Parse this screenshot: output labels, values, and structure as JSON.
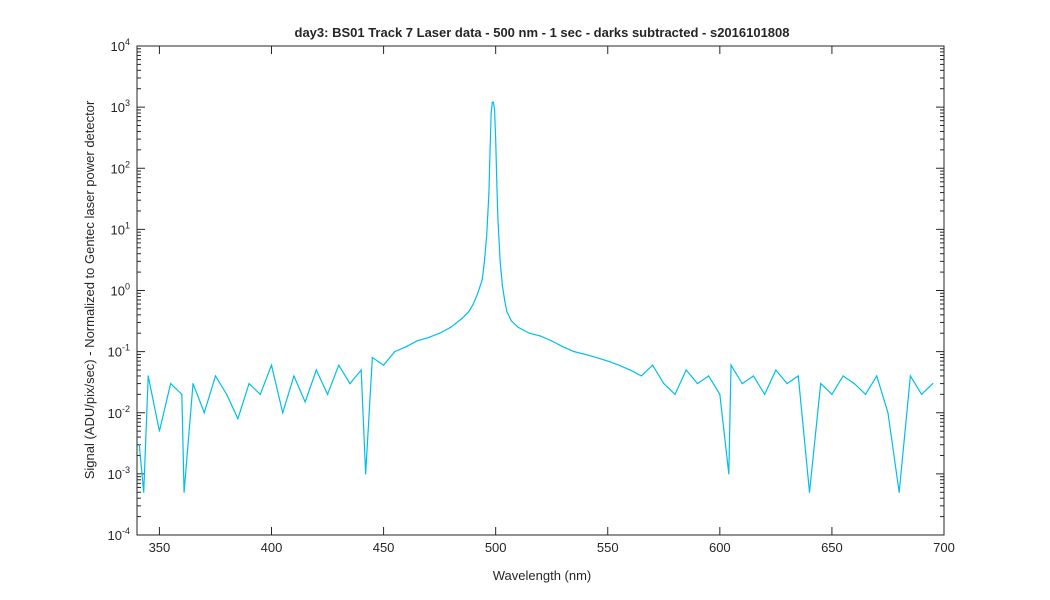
{
  "chart_data": {
    "type": "line",
    "title": "day3: BS01  Track 7 Laser data - 500 nm - 1 sec - darks subtracted - s2016101808",
    "xlabel": "Wavelength (nm)",
    "ylabel": "Signal (ADU/pix/sec) - Normalized to Gentec laser power detector",
    "xlim": [
      340,
      700
    ],
    "ylim": [
      0.0001,
      10000
    ],
    "yscale": "log",
    "grid": false,
    "line_color": "#00bfe6",
    "x_ticks": [
      "350",
      "400",
      "450",
      "500",
      "550",
      "600",
      "650",
      "700"
    ],
    "y_ticks": [
      {
        "base": "10",
        "exp": "-4"
      },
      {
        "base": "10",
        "exp": "-3"
      },
      {
        "base": "10",
        "exp": "-2"
      },
      {
        "base": "10",
        "exp": "-1"
      },
      {
        "base": "10",
        "exp": "0"
      },
      {
        "base": "10",
        "exp": "1"
      },
      {
        "base": "10",
        "exp": "2"
      },
      {
        "base": "10",
        "exp": "3"
      },
      {
        "base": "10",
        "exp": "4"
      }
    ],
    "series": [
      {
        "description": "laser line spectrum",
        "x": [
          341,
          343,
          345,
          350,
          355,
          360,
          361,
          365,
          370,
          375,
          380,
          385,
          390,
          395,
          400,
          405,
          410,
          415,
          420,
          425,
          430,
          435,
          440,
          442,
          445,
          450,
          455,
          460,
          465,
          470,
          475,
          480,
          485,
          488,
          490,
          492,
          494,
          495,
          496,
          497,
          497.5,
          498,
          498.5,
          499,
          499.5,
          500,
          500.5,
          501,
          502,
          503,
          504,
          505,
          507,
          510,
          515,
          520,
          525,
          530,
          535,
          540,
          545,
          550,
          555,
          560,
          565,
          570,
          575,
          580,
          585,
          590,
          595,
          600,
          604,
          605,
          610,
          615,
          620,
          625,
          630,
          635,
          640,
          645,
          650,
          655,
          660,
          665,
          670,
          675,
          680,
          685,
          690,
          695
        ],
        "y": [
          0.003,
          0.0005,
          0.04,
          0.005,
          0.03,
          0.02,
          0.0005,
          0.03,
          0.01,
          0.04,
          0.02,
          0.008,
          0.03,
          0.02,
          0.06,
          0.01,
          0.04,
          0.015,
          0.05,
          0.02,
          0.06,
          0.03,
          0.05,
          0.001,
          0.08,
          0.06,
          0.1,
          0.12,
          0.15,
          0.17,
          0.2,
          0.25,
          0.35,
          0.45,
          0.6,
          0.9,
          1.5,
          3,
          8,
          40,
          200,
          800,
          1200,
          1200,
          900,
          300,
          60,
          15,
          3,
          1.2,
          0.7,
          0.45,
          0.32,
          0.25,
          0.2,
          0.18,
          0.15,
          0.12,
          0.1,
          0.09,
          0.08,
          0.07,
          0.06,
          0.05,
          0.04,
          0.06,
          0.03,
          0.02,
          0.05,
          0.03,
          0.04,
          0.02,
          0.001,
          0.06,
          0.03,
          0.04,
          0.02,
          0.05,
          0.03,
          0.04,
          0.0005,
          0.03,
          0.02,
          0.04,
          0.03,
          0.02,
          0.04,
          0.01,
          0.0005,
          0.04,
          0.02,
          0.03
        ]
      }
    ]
  }
}
